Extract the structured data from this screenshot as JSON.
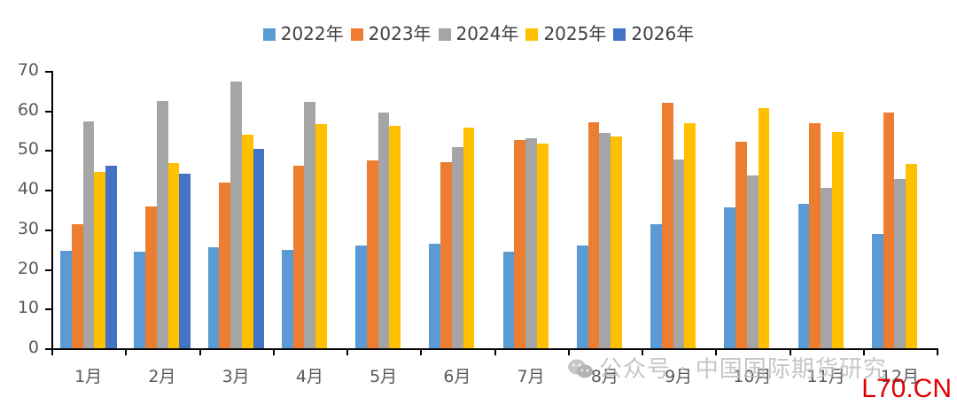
{
  "chart_data": {
    "type": "bar",
    "title": "",
    "xlabel": "",
    "ylabel": "",
    "ylim": [
      0,
      70
    ],
    "yticks": [
      0,
      10,
      20,
      30,
      40,
      50,
      60,
      70
    ],
    "grid": false,
    "legend_position": "top",
    "categories": [
      "1月",
      "2月",
      "3月",
      "4月",
      "5月",
      "6月",
      "7月",
      "8月",
      "9月",
      "10月",
      "11月",
      "12月"
    ],
    "series": [
      {
        "name": "2022年",
        "color": "#5B9BD5",
        "values": [
          24.6,
          24.4,
          25.5,
          24.9,
          25.9,
          26.4,
          24.4,
          25.9,
          31.3,
          35.6,
          36.4,
          28.9
        ]
      },
      {
        "name": "2023年",
        "color": "#ED7D31",
        "values": [
          31.3,
          35.8,
          41.8,
          46.1,
          47.4,
          46.9,
          52.6,
          57.0,
          61.9,
          52.1,
          56.8,
          59.6
        ]
      },
      {
        "name": "2024年",
        "color": "#A5A5A5",
        "values": [
          57.3,
          62.4,
          67.3,
          62.2,
          59.4,
          50.8,
          52.9,
          54.4,
          47.6,
          43.6,
          40.5,
          42.7
        ]
      },
      {
        "name": "2025年",
        "color": "#FFC000",
        "values": [
          44.6,
          46.7,
          54.0,
          56.6,
          56.1,
          55.7,
          51.7,
          53.5,
          56.8,
          60.5,
          54.6,
          46.5
        ]
      },
      {
        "name": "2026年",
        "color": "#4472C4",
        "values": [
          46.1,
          44.1,
          50.4,
          null,
          null,
          null,
          null,
          null,
          null,
          null,
          null,
          null
        ]
      }
    ]
  },
  "watermark": {
    "text": "公众号 · 中国国际期货研究",
    "icon": "wechat-icon"
  },
  "corner_mark": "L70.CN"
}
